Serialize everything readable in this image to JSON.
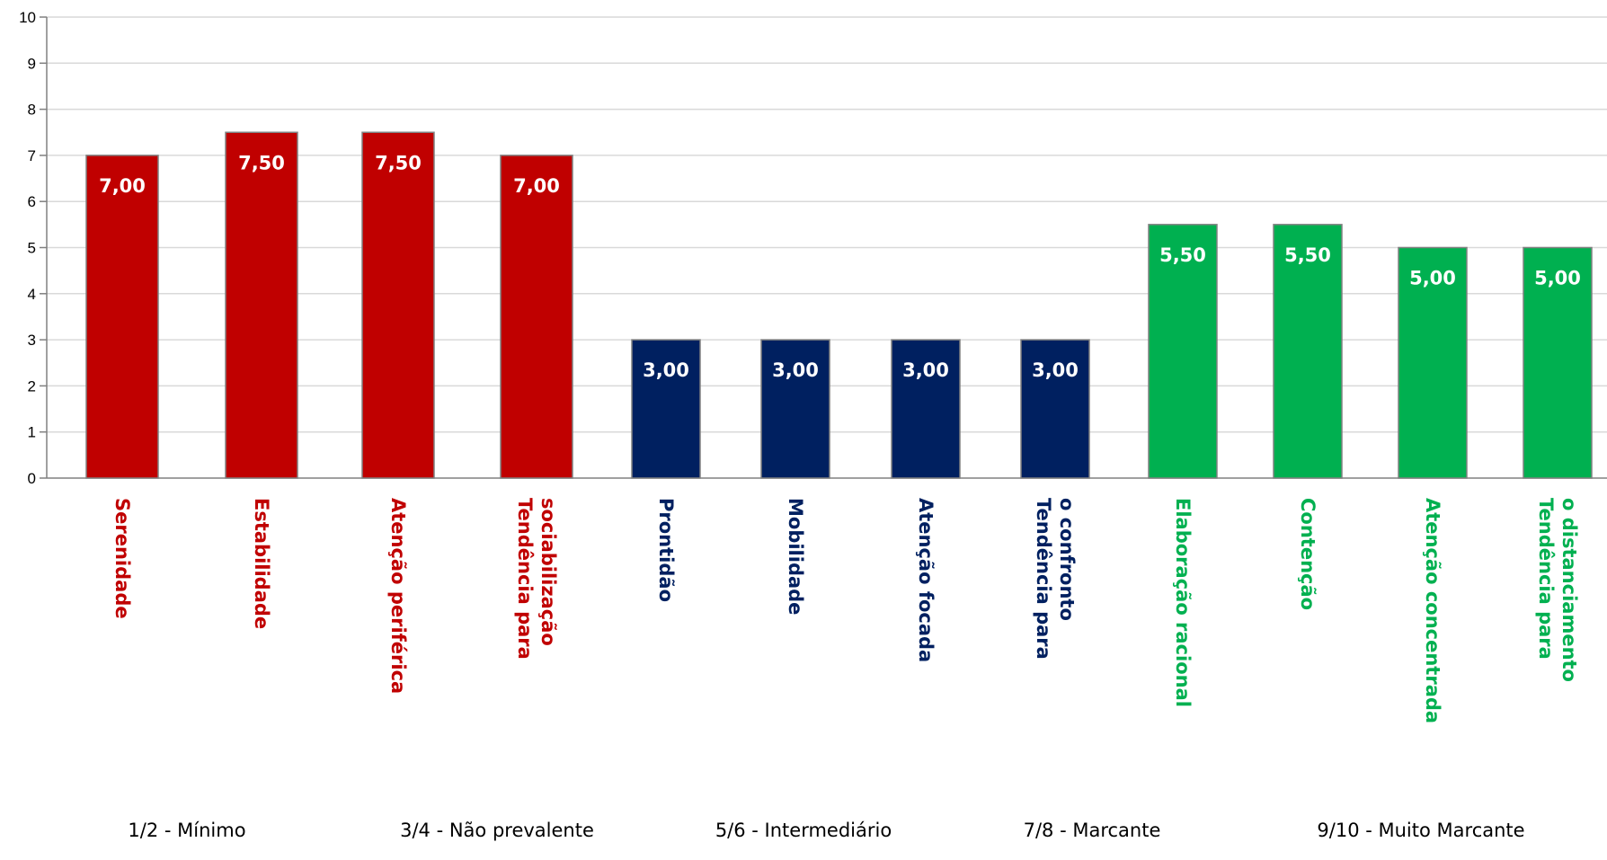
{
  "chart_data": {
    "type": "bar",
    "title": "",
    "xlabel": "",
    "ylabel": "",
    "ylim": [
      0,
      10
    ],
    "yticks": [
      "0",
      "1",
      "2",
      "3",
      "4",
      "5",
      "6",
      "7",
      "8",
      "9",
      "10"
    ],
    "grid": true,
    "bar_outline_color": "#808080",
    "gridline_color": "#d9d9d9",
    "categories": [
      {
        "label": "Serenidade",
        "value": 7.0,
        "value_label": "7,00",
        "color": "#c00000"
      },
      {
        "label": "Estabilidade",
        "value": 7.5,
        "value_label": "7,50",
        "color": "#c00000"
      },
      {
        "label": "Atenção periférica",
        "value": 7.5,
        "value_label": "7,50",
        "color": "#c00000"
      },
      {
        "label": "Tendência para sociabilização",
        "value": 7.0,
        "value_label": "7,00",
        "color": "#c00000"
      },
      {
        "label": "Prontidão",
        "value": 3.0,
        "value_label": "3,00",
        "color": "#002060"
      },
      {
        "label": "Mobilidade",
        "value": 3.0,
        "value_label": "3,00",
        "color": "#002060"
      },
      {
        "label": "Atenção focada",
        "value": 3.0,
        "value_label": "3,00",
        "color": "#002060"
      },
      {
        "label": "Tendência para o confronto",
        "value": 3.0,
        "value_label": "3,00",
        "color": "#002060"
      },
      {
        "label": "Elaboração racional",
        "value": 5.5,
        "value_label": "5,50",
        "color": "#00b050"
      },
      {
        "label": "Contenção",
        "value": 5.5,
        "value_label": "5,50",
        "color": "#00b050"
      },
      {
        "label": "Atenção concentrada",
        "value": 5.0,
        "value_label": "5,00",
        "color": "#00b050"
      },
      {
        "label": "Tendência para o distanciamento",
        "value": 5.0,
        "value_label": "5,00",
        "color": "#00b050"
      }
    ],
    "legend": [
      "1/2 - Mínimo",
      "3/4 - Não prevalente",
      "5/6 - Intermediário",
      "7/8 - Marcante",
      "9/10 - Muito Marcante"
    ]
  }
}
